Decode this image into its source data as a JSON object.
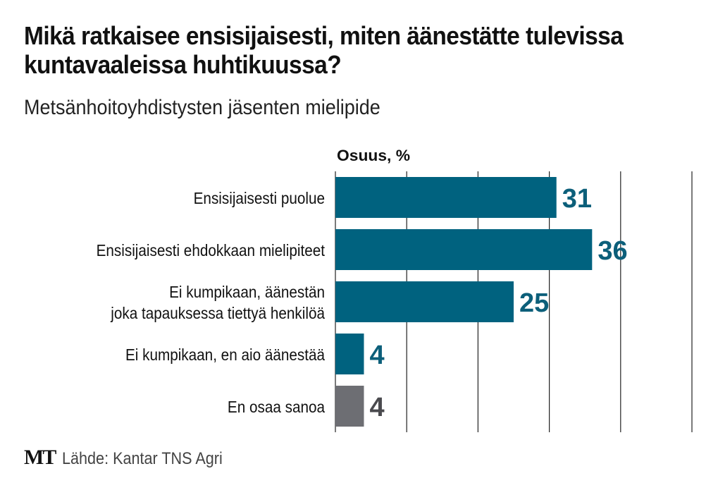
{
  "chart_data": {
    "type": "bar",
    "orientation": "horizontal",
    "title": "Mikä ratkaisee ensisijaisesti, miten äänestätte tulevissa kuntavaaleissa huhtikuussa?",
    "subtitle": "Metsänhoitoyhdistysten jäsenten mielipide",
    "xlabel": "Osuus, %",
    "xlim": [
      0,
      50
    ],
    "grid": true,
    "categories": [
      [
        "Ensisijaisesti puolue"
      ],
      [
        "Ensisijaisesti ehdokkaan mielipiteet"
      ],
      [
        "Ei kumpikaan, äänestän",
        "joka tapauksessa tiettyä henkilöä"
      ],
      [
        "Ei kumpikaan, en aio äänestää"
      ],
      [
        "En osaa sanoa"
      ]
    ],
    "values": [
      31,
      36,
      25,
      4,
      4
    ],
    "colors": [
      "#00627f",
      "#00627f",
      "#00627f",
      "#00627f",
      "#6d6e73"
    ],
    "label_colors": [
      "#0c5f7a",
      "#0c5f7a",
      "#0c5f7a",
      "#0c5f7a",
      "#4a4a4e"
    ]
  },
  "footer": {
    "logo": "MT",
    "source": "Lähde: Kantar TNS Agri"
  }
}
